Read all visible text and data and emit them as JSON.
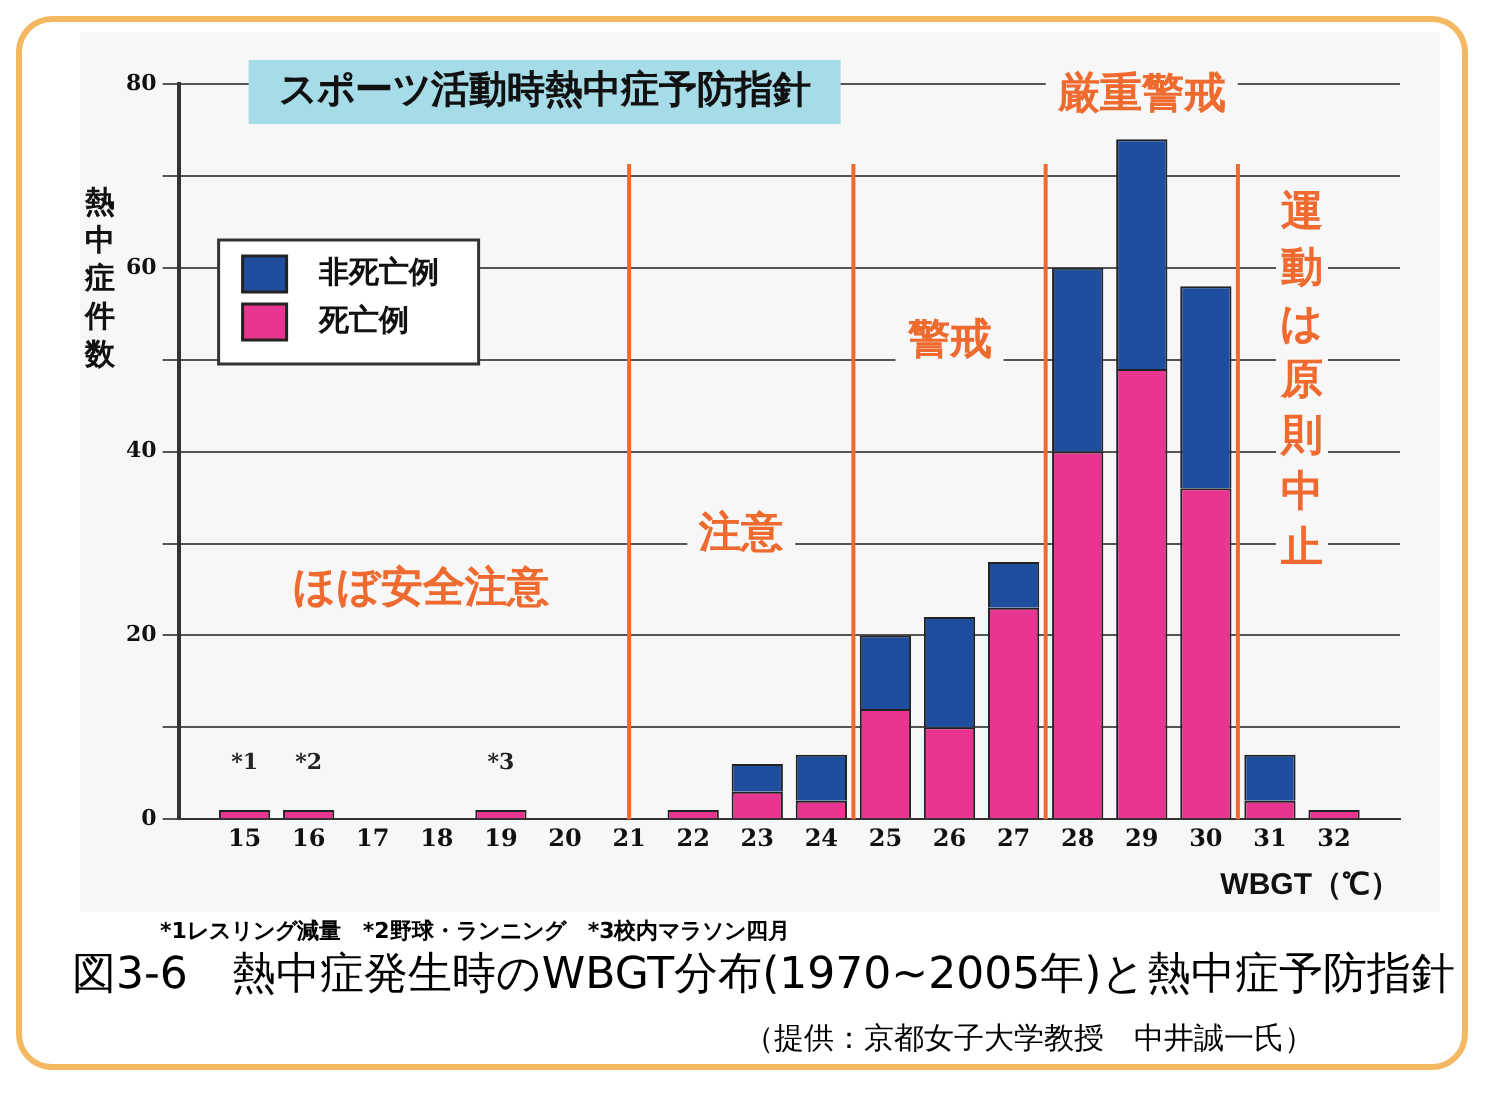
{
  "chart_data": {
    "type": "bar",
    "title": "スポーツ活動時熱中症予防指針",
    "xlabel": "WBGT（℃）",
    "ylabel": "熱中症件数",
    "x": [
      15,
      16,
      17,
      18,
      19,
      20,
      21,
      22,
      23,
      24,
      25,
      26,
      27,
      28,
      29,
      30,
      31,
      32
    ],
    "stacked": true,
    "series": [
      {
        "name": "死亡例",
        "color": "#e8358f",
        "values": [
          1,
          1,
          0,
          0,
          1,
          0,
          0,
          1,
          3,
          2,
          12,
          10,
          23,
          40,
          49,
          36,
          2,
          1
        ]
      },
      {
        "name": "非死亡例",
        "color": "#1f4e9e",
        "values": [
          0,
          0,
          0,
          0,
          0,
          0,
          0,
          0,
          3,
          5,
          8,
          12,
          5,
          20,
          25,
          22,
          5,
          0
        ]
      }
    ],
    "xlim": [
      14.5,
      32.5
    ],
    "xticks": [
      15,
      16,
      17,
      18,
      19,
      20,
      21,
      22,
      23,
      24,
      25,
      26,
      27,
      28,
      29,
      30,
      31,
      32
    ],
    "ylim": [
      0,
      80
    ],
    "yticks": [
      0,
      {
        "value": 10,
        "label": null
      },
      20,
      {
        "value": 30,
        "label": null
      },
      40,
      {
        "value": 50,
        "label": null
      },
      60,
      {
        "value": 70,
        "label": null
      },
      80
    ],
    "grid": "y",
    "legend": "top left",
    "ref_lines": [
      {
        "axis": "x",
        "value": 21,
        "color": "#ee6a2e"
      },
      {
        "axis": "x",
        "value": 24.5,
        "color": "#ee6a2e"
      },
      {
        "axis": "x",
        "value": 27.5,
        "color": "#ee6a2e"
      },
      {
        "axis": "x",
        "value": 30.5,
        "color": "#ee6a2e"
      }
    ],
    "annotations": [
      "ほぼ安全注意",
      "注意",
      "警戒",
      "厳重警戒",
      "運動は原則中止",
      {
        "text": "*1",
        "x": 15,
        "y": 1
      },
      {
        "text": "*2",
        "x": 16,
        "y": 1
      },
      {
        "text": "*3",
        "x": 19,
        "y": 1
      },
      "*1レスリング減量　*2野球・ランニング　*3校内マラソン四月",
      "図3-6　熱中症発生時のWBGT分布(1970~2005年)と熱中症予防指針",
      "（提供：京都女子大学教授　中井誠一氏）"
    ]
  }
}
